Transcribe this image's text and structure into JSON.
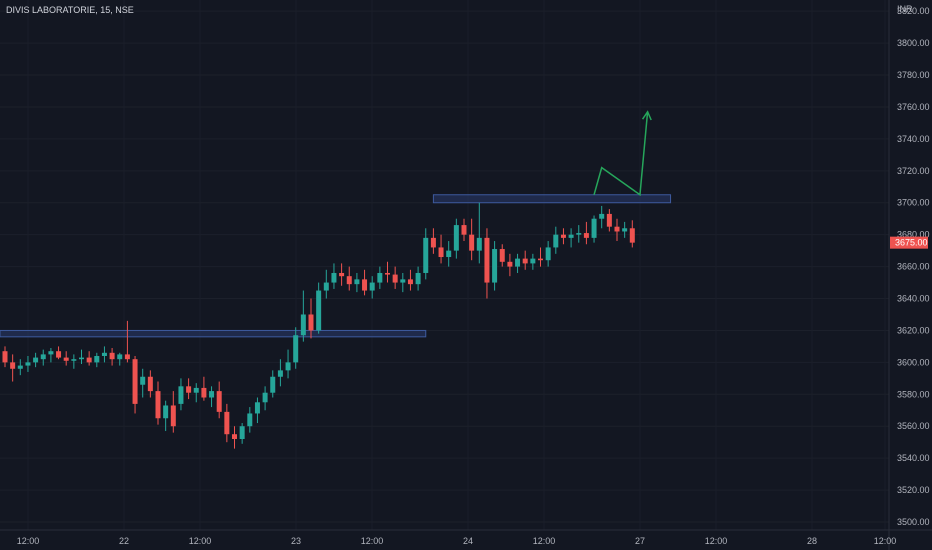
{
  "header": {
    "title": "DIVIS LABORATORIE, 15, NSE"
  },
  "chart_data": {
    "type": "candlestick",
    "currency": "INR",
    "ylim": [
      3495,
      3827
    ],
    "y_ticks": [
      "3820.00",
      "3800.00",
      "3780.00",
      "3760.00",
      "3740.00",
      "3720.00",
      "3700.00",
      "3680.00",
      "3660.00",
      "3640.00",
      "3620.00",
      "3600.00",
      "3580.00",
      "3560.00",
      "3540.00",
      "3520.00",
      "3500.00"
    ],
    "x_ticks": [
      "12:00",
      "22",
      "12:00",
      "23",
      "12:00",
      "24",
      "12:00",
      "27",
      "12:00",
      "28",
      "12:00"
    ],
    "last_price": "3675.00",
    "candles": [
      [
        3607,
        3610,
        3597,
        3600
      ],
      [
        3600,
        3605,
        3588,
        3596
      ],
      [
        3596,
        3602,
        3592,
        3598
      ],
      [
        3598,
        3604,
        3594,
        3600
      ],
      [
        3600,
        3606,
        3597,
        3603
      ],
      [
        3602,
        3608,
        3598,
        3605
      ],
      [
        3605,
        3609,
        3600,
        3607
      ],
      [
        3607,
        3610,
        3602,
        3603
      ],
      [
        3603,
        3607,
        3598,
        3601
      ],
      [
        3601,
        3605,
        3596,
        3602
      ],
      [
        3602,
        3608,
        3599,
        3603
      ],
      [
        3603,
        3607,
        3598,
        3600
      ],
      [
        3600,
        3606,
        3597,
        3604
      ],
      [
        3604,
        3610,
        3600,
        3606
      ],
      [
        3606,
        3609,
        3598,
        3602
      ],
      [
        3602,
        3606,
        3598,
        3605
      ],
      [
        3605,
        3626,
        3600,
        3602
      ],
      [
        3602,
        3604,
        3568,
        3574
      ],
      [
        3586,
        3596,
        3578,
        3591
      ],
      [
        3591,
        3595,
        3578,
        3582
      ],
      [
        3582,
        3588,
        3561,
        3565
      ],
      [
        3565,
        3576,
        3557,
        3573
      ],
      [
        3573,
        3582,
        3556,
        3560
      ],
      [
        3574,
        3590,
        3570,
        3585
      ],
      [
        3585,
        3590,
        3577,
        3581
      ],
      [
        3581,
        3587,
        3575,
        3584
      ],
      [
        3584,
        3591,
        3576,
        3578
      ],
      [
        3578,
        3585,
        3572,
        3582
      ],
      [
        3582,
        3588,
        3565,
        3569
      ],
      [
        3569,
        3574,
        3550,
        3555
      ],
      [
        3555,
        3560,
        3546,
        3552
      ],
      [
        3552,
        3562,
        3549,
        3560
      ],
      [
        3560,
        3572,
        3556,
        3568
      ],
      [
        3568,
        3578,
        3562,
        3575
      ],
      [
        3575,
        3585,
        3570,
        3581
      ],
      [
        3581,
        3595,
        3578,
        3591
      ],
      [
        3591,
        3602,
        3585,
        3595
      ],
      [
        3595,
        3608,
        3590,
        3600
      ],
      [
        3600,
        3622,
        3596,
        3617
      ],
      [
        3617,
        3645,
        3613,
        3630
      ],
      [
        3630,
        3640,
        3615,
        3620
      ],
      [
        3620,
        3650,
        3618,
        3645
      ],
      [
        3645,
        3658,
        3640,
        3650
      ],
      [
        3650,
        3662,
        3646,
        3656
      ],
      [
        3656,
        3662,
        3648,
        3654
      ],
      [
        3654,
        3660,
        3645,
        3649
      ],
      [
        3649,
        3656,
        3644,
        3652
      ],
      [
        3652,
        3658,
        3642,
        3645
      ],
      [
        3645,
        3654,
        3640,
        3650
      ],
      [
        3650,
        3660,
        3646,
        3656
      ],
      [
        3656,
        3663,
        3650,
        3655
      ],
      [
        3655,
        3660,
        3646,
        3650
      ],
      [
        3650,
        3656,
        3644,
        3652
      ],
      [
        3652,
        3658,
        3645,
        3649
      ],
      [
        3649,
        3660,
        3645,
        3656
      ],
      [
        3656,
        3684,
        3652,
        3678
      ],
      [
        3678,
        3684,
        3668,
        3672
      ],
      [
        3672,
        3680,
        3662,
        3666
      ],
      [
        3666,
        3676,
        3660,
        3670
      ],
      [
        3670,
        3690,
        3665,
        3686
      ],
      [
        3686,
        3690,
        3676,
        3680
      ],
      [
        3680,
        3690,
        3664,
        3670
      ],
      [
        3670,
        3700,
        3662,
        3678
      ],
      [
        3678,
        3684,
        3640,
        3650
      ],
      [
        3650,
        3676,
        3645,
        3671
      ],
      [
        3671,
        3674,
        3660,
        3663
      ],
      [
        3663,
        3668,
        3654,
        3660
      ],
      [
        3660,
        3668,
        3656,
        3665
      ],
      [
        3665,
        3670,
        3658,
        3662
      ],
      [
        3662,
        3668,
        3658,
        3665
      ],
      [
        3665,
        3672,
        3660,
        3664
      ],
      [
        3664,
        3676,
        3660,
        3672
      ],
      [
        3672,
        3685,
        3668,
        3680
      ],
      [
        3680,
        3684,
        3674,
        3678
      ],
      [
        3678,
        3684,
        3672,
        3680
      ],
      [
        3680,
        3686,
        3675,
        3681
      ],
      [
        3681,
        3688,
        3674,
        3678
      ],
      [
        3678,
        3692,
        3675,
        3690
      ],
      [
        3690,
        3698,
        3684,
        3693
      ],
      [
        3693,
        3696,
        3682,
        3685
      ],
      [
        3685,
        3690,
        3676,
        3682
      ],
      [
        3682,
        3688,
        3678,
        3684
      ],
      [
        3684,
        3689,
        3672,
        3675
      ]
    ],
    "zones": [
      {
        "from": 3616,
        "to": 3620,
        "x_start": -1,
        "x_end": 55
      },
      {
        "from": 3700,
        "to": 3705,
        "x_start": 56,
        "x_end": 87
      }
    ],
    "projection": [
      [
        77,
        3705
      ],
      [
        78,
        3722
      ],
      [
        83,
        3705
      ],
      [
        84,
        3757
      ]
    ]
  }
}
